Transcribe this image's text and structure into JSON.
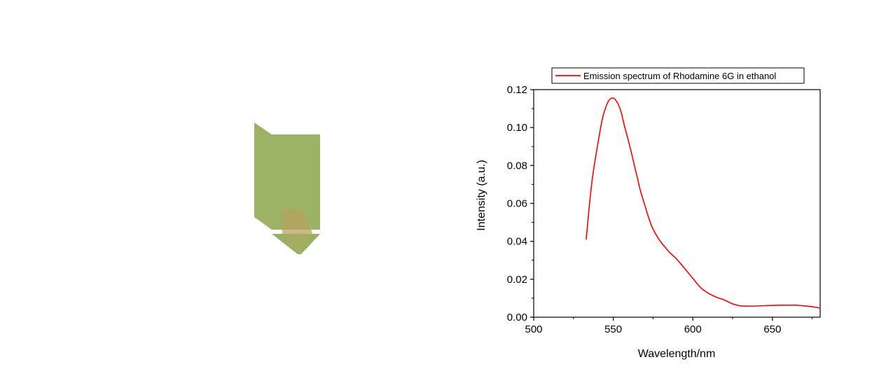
{
  "chart_data": {
    "type": "line",
    "xlabel": "Wavelength/nm",
    "ylabel": "Intensity (a.u.)",
    "xlim": [
      500,
      680
    ],
    "ylim": [
      0,
      0.12
    ],
    "xticks": [
      "500",
      "550",
      "600",
      "650"
    ],
    "xtick_values": [
      500,
      550,
      600,
      650
    ],
    "yticks": [
      "0.00",
      "0.02",
      "0.04",
      "0.06",
      "0.08",
      "0.10",
      "0.12"
    ],
    "ytick_values": [
      0,
      0.02,
      0.04,
      0.06,
      0.08,
      0.1,
      0.12
    ],
    "legend_position": "top, outside plot",
    "grid": false,
    "series": [
      {
        "name": "Emission spectrum of Rhodamine 6G in ethanol",
        "color": "#ff0000",
        "x": [
          533,
          535,
          537,
          540,
          543,
          545,
          547,
          549,
          550,
          551,
          553,
          555,
          557,
          560,
          563,
          565,
          567,
          570,
          573,
          575,
          578,
          580,
          583,
          585,
          590,
          595,
          600,
          605,
          610,
          615,
          620,
          625,
          630,
          635,
          640,
          645,
          650,
          655,
          660,
          665,
          670,
          675,
          680
        ],
        "y": [
          0.041,
          0.059,
          0.074,
          0.09,
          0.104,
          0.11,
          0.114,
          0.1155,
          0.1155,
          0.115,
          0.1125,
          0.108,
          0.101,
          0.0915,
          0.081,
          0.074,
          0.067,
          0.0585,
          0.0505,
          0.0465,
          0.042,
          0.0395,
          0.0365,
          0.0345,
          0.0305,
          0.0255,
          0.0205,
          0.0155,
          0.0125,
          0.0105,
          0.009,
          0.007,
          0.006,
          0.0058,
          0.0059,
          0.0061,
          0.0062,
          0.0063,
          0.0063,
          0.0063,
          0.006,
          0.0055,
          0.0048
        ]
      }
    ]
  },
  "graphic": {
    "description_icon": "green-arrow-graphic",
    "colors": {
      "body": "#9cb264",
      "arrow_head": "#8ba85a",
      "arrow_shaft": "#c7a15f"
    }
  }
}
